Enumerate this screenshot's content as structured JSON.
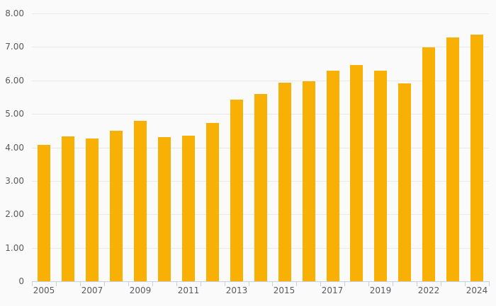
{
  "chart_data": {
    "type": "bar",
    "title": "",
    "xlabel": "",
    "ylabel": "",
    "legend": "none",
    "grid": true,
    "ylim": [
      0,
      8
    ],
    "categories": [
      "2005",
      "2006",
      "2007",
      "2008",
      "2009",
      "2010",
      "2011",
      "2012",
      "2013",
      "2014",
      "2015",
      "2016",
      "2017",
      "2018",
      "2019",
      "2021",
      "2022",
      "2023",
      "2024"
    ],
    "values": [
      4.08,
      4.33,
      4.26,
      4.49,
      4.79,
      4.31,
      4.35,
      4.72,
      5.43,
      5.59,
      5.93,
      5.97,
      6.3,
      6.46,
      6.28,
      5.9,
      6.98,
      7.28,
      7.36
    ],
    "y_tick_labels": [
      "0",
      "1.00",
      "2.00",
      "3.00",
      "4.00",
      "5.00",
      "6.00",
      "7.00",
      "8.00"
    ],
    "x_tick_labels": [
      "2005",
      "2007",
      "2009",
      "2011",
      "2013",
      "2015",
      "2017",
      "2019",
      "2022",
      "2024"
    ],
    "x_labeled_band_indices": [
      0,
      2,
      4,
      6,
      8,
      10,
      12,
      14,
      16,
      18
    ],
    "colors": {
      "bar": "#F9B005",
      "background": "#FAFAFA",
      "gridline": "#E9E9E9",
      "axis": "#C8CEE4",
      "text": "#5A5A5C"
    }
  }
}
